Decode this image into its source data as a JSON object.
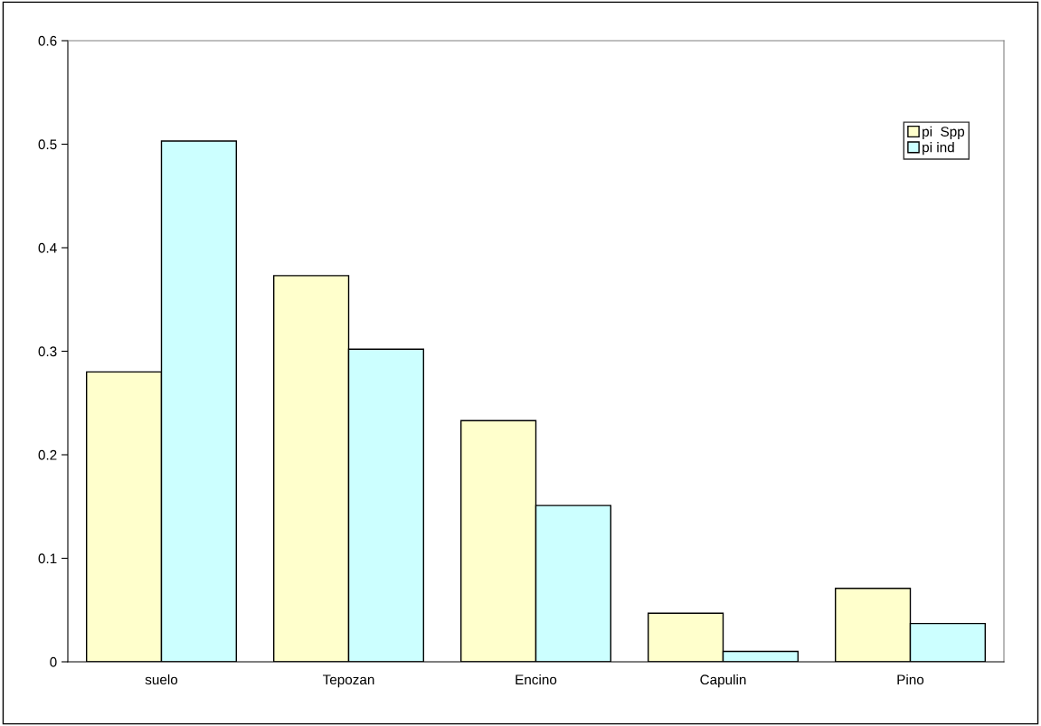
{
  "chart_data": {
    "type": "bar",
    "categories": [
      "suelo",
      "Tepozan",
      "Encino",
      "Capulin",
      "Pino"
    ],
    "series": [
      {
        "name": "pi  Spp",
        "color": "#ffffcc",
        "values": [
          0.28,
          0.373,
          0.233,
          0.047,
          0.071
        ]
      },
      {
        "name": "pi ind",
        "color": "#ccffff",
        "values": [
          0.503,
          0.302,
          0.151,
          0.01,
          0.037
        ]
      }
    ],
    "ylim": [
      0,
      0.6
    ],
    "yticks": [
      0,
      0.1,
      0.2,
      0.3,
      0.4,
      0.5,
      0.6
    ],
    "grid": false,
    "legend": "top right"
  }
}
